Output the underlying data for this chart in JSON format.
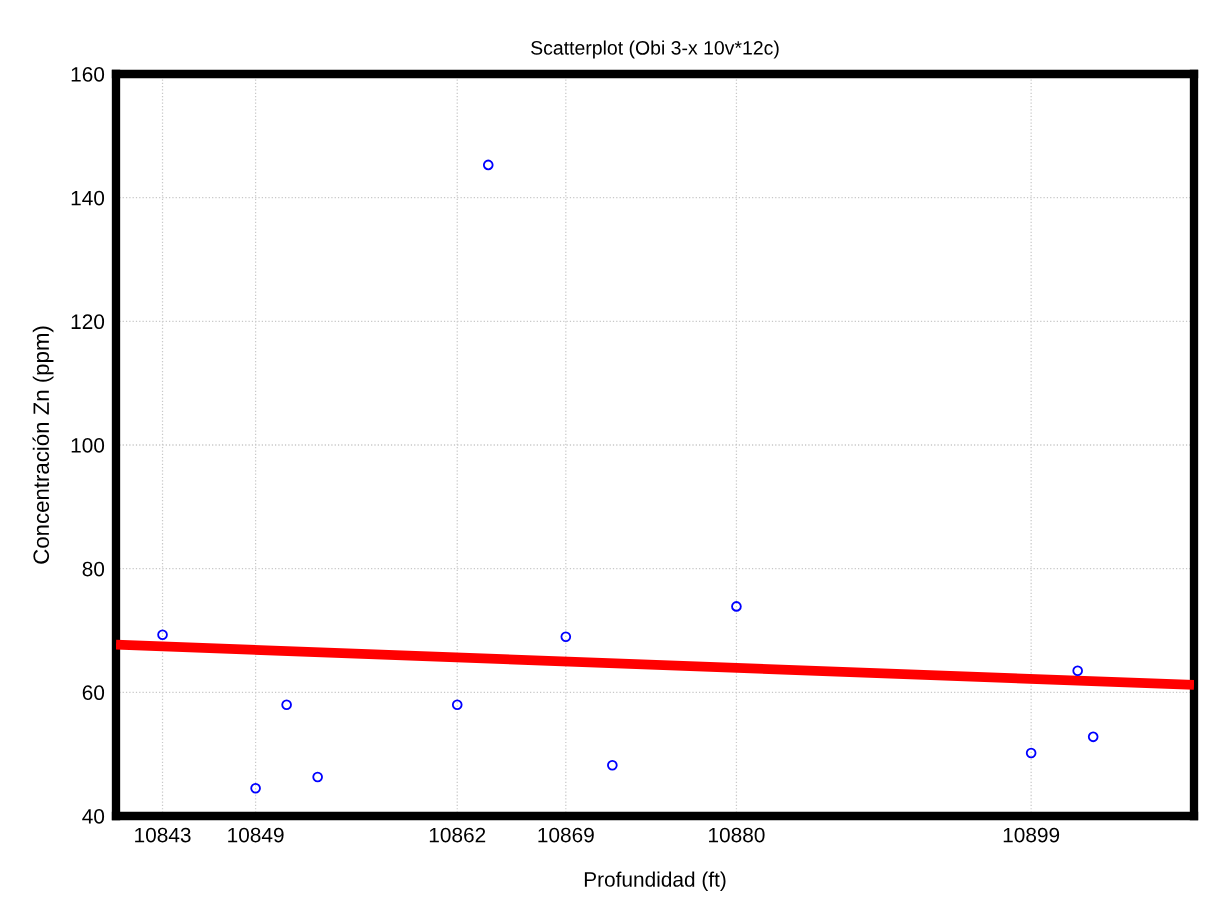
{
  "chart_data": {
    "type": "scatter",
    "title": "Scatterplot (Obi 3-x 10v*12c)",
    "xlabel": "Profundidad (ft)",
    "ylabel": "Concentración Zn (ppm)",
    "xlim": [
      10840,
      10909.5
    ],
    "xticks": [
      10843,
      10849,
      10862,
      10869,
      10880,
      10899
    ],
    "ylim": [
      40,
      160
    ],
    "yticks": [
      40,
      60,
      80,
      100,
      120,
      140,
      160
    ],
    "grid": true,
    "series": [
      {
        "marker": "circle",
        "color": "#0000ff",
        "x": [
          10843,
          10849,
          10851,
          10853,
          10862,
          10864,
          10869,
          10872,
          10880,
          10899,
          10902,
          10903
        ],
        "values": [
          69.3,
          44.5,
          58,
          46.3,
          58,
          145.3,
          69,
          48.2,
          73.9,
          50.2,
          63.5,
          52.8
        ]
      },
      {
        "type": "line",
        "color": "#ff0000",
        "x": [
          10840,
          10909.5
        ],
        "values": [
          67.7,
          61.2
        ]
      }
    ]
  }
}
